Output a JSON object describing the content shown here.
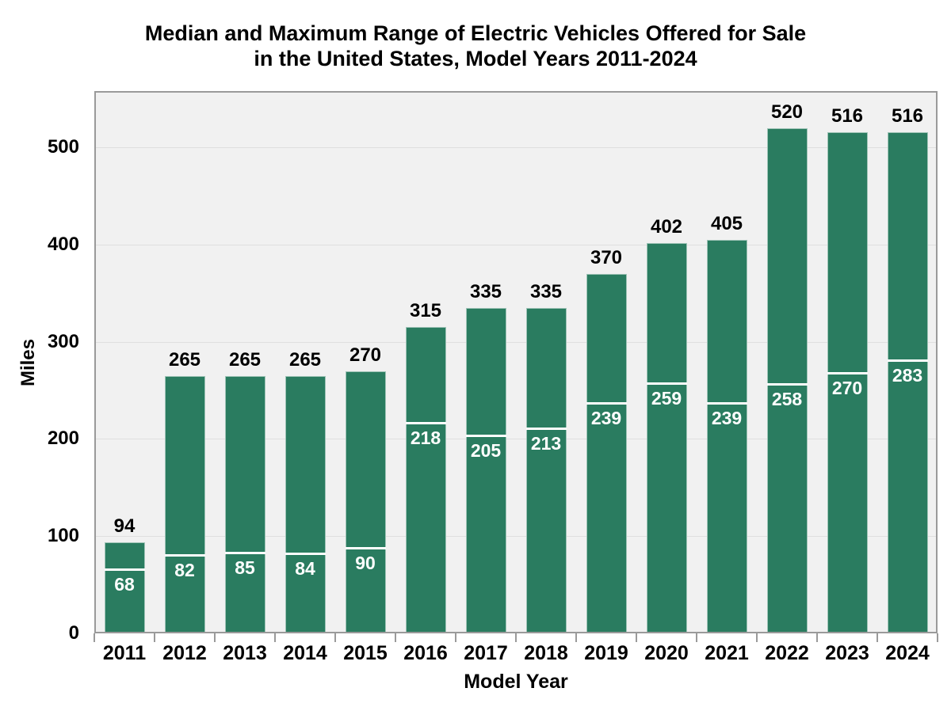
{
  "title": {
    "line1": "Median and Maximum Range of Electric Vehicles Offered for Sale",
    "line2": "in the United States, Model Years 2011-2024"
  },
  "axes": {
    "y_label": "Miles",
    "x_label": "Model Year"
  },
  "chart_data": {
    "type": "bar",
    "title": "Median and Maximum Range of Electric Vehicles Offered for Sale in the United States, Model Years 2011-2024",
    "xlabel": "Model Year",
    "ylabel": "Miles",
    "categories": [
      "2011",
      "2012",
      "2013",
      "2014",
      "2015",
      "2016",
      "2017",
      "2018",
      "2019",
      "2020",
      "2021",
      "2022",
      "2023",
      "2024"
    ],
    "series": [
      {
        "name": "Maximum range (bar height, label above bar)",
        "values": [
          94,
          265,
          265,
          265,
          270,
          315,
          335,
          335,
          370,
          402,
          405,
          520,
          516,
          516
        ]
      },
      {
        "name": "Median range (white line in bar, label below line)",
        "values": [
          68,
          82,
          85,
          84,
          90,
          218,
          205,
          213,
          239,
          259,
          239,
          258,
          270,
          283
        ]
      }
    ],
    "yticks": [
      0,
      100,
      200,
      300,
      400,
      500
    ],
    "ylim": [
      0,
      558
    ],
    "grid": true,
    "legend_position": "none",
    "colors": {
      "bar": "#2a7c60",
      "median_line": "#ffffff",
      "median_label": "#ffffff",
      "max_label": "#000000",
      "plot_background": "#f1f1f1",
      "gridline": "#dfdfdf",
      "plot_border": "#9a9a9a",
      "page_background": "#ffffff"
    }
  }
}
